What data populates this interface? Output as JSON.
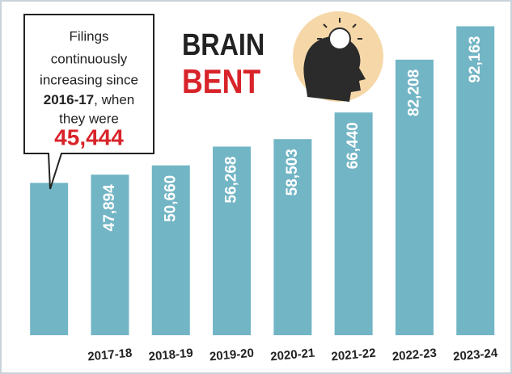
{
  "chart_data": {
    "type": "bar",
    "title": [
      "BRAIN",
      "BENT"
    ],
    "annotation": {
      "lines": [
        "Filings",
        "continuously",
        "increasing since"
      ],
      "bold": "2016-17",
      "rest": ", when",
      "last": "they were"
    },
    "categories": [
      null,
      "2017-18",
      "2018-19",
      "2019-20",
      "2020-21",
      "2021-22",
      "2022-23",
      "2023-24"
    ],
    "values": [
      45444,
      47894,
      50660,
      56268,
      58503,
      66440,
      82208,
      92163
    ],
    "value_labels": [
      "45,444",
      "47,894",
      "50,660",
      "56,268",
      "58,503",
      "66,440",
      "82,208",
      "92,163"
    ],
    "color": "#72b5c5",
    "ylim": [
      0,
      100000
    ]
  }
}
